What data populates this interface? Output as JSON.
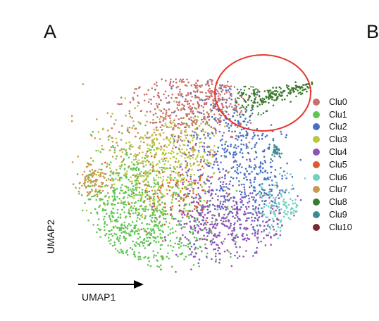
{
  "panels": {
    "left": "A",
    "right": "B"
  },
  "chart_data": {
    "type": "scatter",
    "title": "",
    "xlabel": "UMAP1",
    "ylabel": "UMAP2",
    "legend_position": "right",
    "highlight": {
      "cluster": "Clu8",
      "shape": "ellipse",
      "color": "#e8382f"
    },
    "series": [
      {
        "name": "Clu0",
        "color": "#c8706a"
      },
      {
        "name": "Clu1",
        "color": "#5ec453"
      },
      {
        "name": "Clu2",
        "color": "#4a6fc2"
      },
      {
        "name": "Clu3",
        "color": "#b8c93f"
      },
      {
        "name": "Clu4",
        "color": "#8e52b5"
      },
      {
        "name": "Clu5",
        "color": "#dd5a32"
      },
      {
        "name": "Clu6",
        "color": "#6ed3bf"
      },
      {
        "name": "Clu7",
        "color": "#c89a4c"
      },
      {
        "name": "Clu8",
        "color": "#3c7a2e"
      },
      {
        "name": "Clu9",
        "color": "#3d8a94"
      },
      {
        "name": "Clu10",
        "color": "#7a2a2e"
      }
    ]
  }
}
